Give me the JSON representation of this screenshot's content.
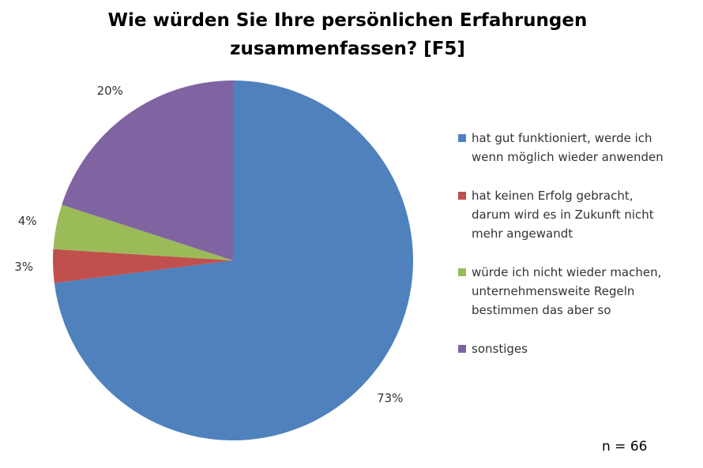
{
  "chart_data": {
    "type": "pie",
    "title": "Wie würden Sie Ihre persönlichen Erfahrungen zusammenfassen? [F5]",
    "categories": [
      "hat gut funktioniert, werde ich wenn möglich wieder anwenden",
      "hat keinen Erfolg gebracht, darum wird es in Zukunft nicht mehr angewandt",
      "würde ich nicht wieder machen, unternehmensweite Regeln bestimmen das aber so",
      "sonstiges"
    ],
    "values": [
      73,
      3,
      4,
      20
    ],
    "value_labels": [
      "73%",
      "3%",
      "4%",
      "20%"
    ],
    "colors": [
      "#4f81bd",
      "#c0504d",
      "#9bbb59",
      "#8064a2"
    ],
    "annotation": "n = 66",
    "legend": "right"
  }
}
